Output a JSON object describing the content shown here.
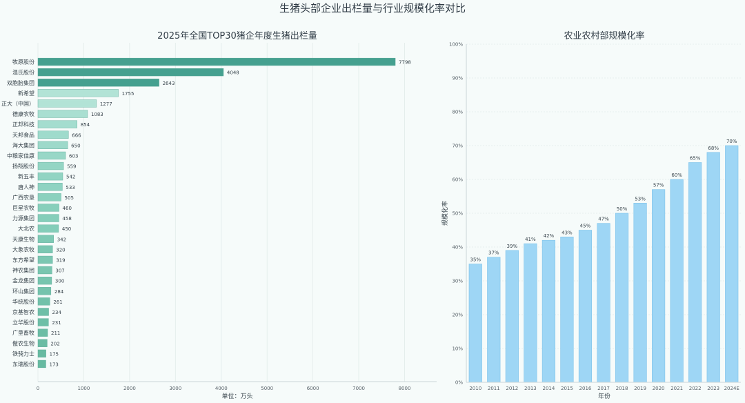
{
  "page": {
    "title": "生猪头部企业出栏量与行业规模化率对比"
  },
  "chart_data": [
    {
      "type": "bar",
      "orientation": "horizontal",
      "title": "2025年全国TOP30猪企年度生猪出栏量",
      "xlabel": "单位：万头",
      "ylabel": "",
      "xlim": [
        0,
        8700
      ],
      "xticks": [
        0,
        1000,
        2000,
        3000,
        4000,
        5000,
        6000,
        7000,
        8000
      ],
      "grid": true,
      "categories": [
        "牧原股份",
        "温氏股份",
        "双胞胎集团",
        "新希望",
        "正大（中国）",
        "德康农牧",
        "正邦科技",
        "天邦食品",
        "海大集团",
        "中粮家佳康",
        "扬翔股份",
        "新五丰",
        "唐人神",
        "广西农垦",
        "巨星农牧",
        "力源集团",
        "大北农",
        "天康生物",
        "大象农牧",
        "东方希望",
        "神农集团",
        "金龙集团",
        "环山集团",
        "华统股份",
        "京基智农",
        "立华股份",
        "广垦畜牧",
        "傲农生物",
        "铁骑力士",
        "东瑞股份"
      ],
      "values": [
        7798,
        4048,
        2643,
        1755,
        1277,
        1083,
        854,
        666,
        650,
        603,
        559,
        542,
        533,
        505,
        460,
        458,
        450,
        342,
        320,
        319,
        307,
        300,
        284,
        261,
        234,
        231,
        211,
        202,
        175,
        173
      ],
      "colors": [
        "#45a08f",
        "#45a08f",
        "#45a08f",
        "#b2e3d6",
        "#b2e3d6",
        "#a9dfd1",
        "#a4ddcf",
        "#9fdbcc",
        "#9dd9ca",
        "#98d7c7",
        "#94d5c4",
        "#92d4c3",
        "#8fd3c2",
        "#8bd1be",
        "#87cfbb",
        "#85ceba",
        "#84cdb9",
        "#7ec9b4",
        "#7bc7b2",
        "#7bc7b2",
        "#79c6b0",
        "#77c5af",
        "#75c3ad",
        "#72c1aa",
        "#6fbfa8",
        "#6ebfa7",
        "#6cbda5",
        "#6abca4",
        "#67baa1",
        "#67baa1"
      ]
    },
    {
      "type": "bar",
      "title": "农业农村部规模化率",
      "xlabel": "年份",
      "ylabel": "规模化率",
      "ylim": [
        0,
        100
      ],
      "yticks": [
        0,
        10,
        20,
        30,
        40,
        50,
        60,
        70,
        80,
        90,
        100
      ],
      "ytick_format": "{v}%",
      "grid": true,
      "categories": [
        "2010",
        "2011",
        "2012",
        "2013",
        "2014",
        "2015",
        "2016",
        "2017",
        "2018",
        "2019",
        "2020",
        "2021",
        "2022",
        "2023",
        "2024E"
      ],
      "values": [
        35,
        37,
        39,
        41,
        42,
        43,
        45,
        47,
        50,
        53,
        57,
        60,
        65,
        68,
        70
      ],
      "bar_color": "#9ed6f5",
      "bar_edge": "#7cc2ea"
    }
  ]
}
